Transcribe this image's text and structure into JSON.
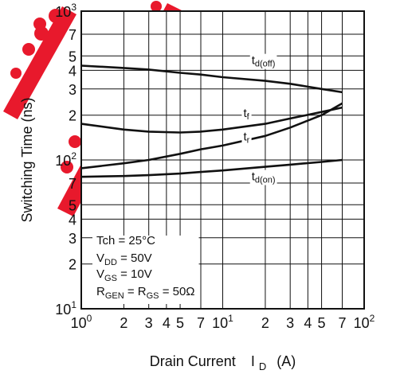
{
  "chart_data": {
    "type": "line",
    "x_scale": "log",
    "y_scale": "log",
    "xlim": [
      1,
      100
    ],
    "ylim": [
      10,
      1000
    ],
    "grid": true,
    "xlabel": "Drain Current",
    "xlabel_symbol": "I",
    "xlabel_sub": "D",
    "xlabel_unit": "(A)",
    "ylabel": "Switching Time  (ns)",
    "x_ticks": [
      {
        "v": 1,
        "base": "10",
        "sup": "0"
      },
      {
        "v": 2,
        "base": "2",
        "sup": ""
      },
      {
        "v": 3,
        "base": "3",
        "sup": ""
      },
      {
        "v": 4,
        "base": "4",
        "sup": ""
      },
      {
        "v": 5,
        "base": "5",
        "sup": ""
      },
      {
        "v": 7,
        "base": "7",
        "sup": ""
      },
      {
        "v": 10,
        "base": "10",
        "sup": "1"
      },
      {
        "v": 20,
        "base": "2",
        "sup": ""
      },
      {
        "v": 30,
        "base": "3",
        "sup": ""
      },
      {
        "v": 40,
        "base": "4",
        "sup": ""
      },
      {
        "v": 50,
        "base": "5",
        "sup": ""
      },
      {
        "v": 70,
        "base": "7",
        "sup": ""
      },
      {
        "v": 100,
        "base": "10",
        "sup": "2"
      }
    ],
    "y_ticks": [
      {
        "v": 10,
        "base": "10",
        "sup": "1"
      },
      {
        "v": 20,
        "base": "2",
        "sup": ""
      },
      {
        "v": 30,
        "base": "3",
        "sup": ""
      },
      {
        "v": 40,
        "base": "4",
        "sup": ""
      },
      {
        "v": 50,
        "base": "5",
        "sup": ""
      },
      {
        "v": 70,
        "base": "7",
        "sup": ""
      },
      {
        "v": 100,
        "base": "10",
        "sup": "2"
      },
      {
        "v": 200,
        "base": "2",
        "sup": ""
      },
      {
        "v": 300,
        "base": "3",
        "sup": ""
      },
      {
        "v": 400,
        "base": "4",
        "sup": ""
      },
      {
        "v": 500,
        "base": "5",
        "sup": ""
      },
      {
        "v": 700,
        "base": "7",
        "sup": ""
      },
      {
        "v": 1000,
        "base": "10",
        "sup": "3"
      }
    ],
    "series": [
      {
        "name": "td(off)",
        "label_main": "t",
        "label_sub": "d(off)",
        "label_x": 16,
        "label_y": 440,
        "x": [
          1,
          2,
          3,
          5,
          7,
          10,
          20,
          30,
          50,
          70
        ],
        "y": [
          430,
          415,
          405,
          385,
          375,
          360,
          340,
          325,
          300,
          285
        ]
      },
      {
        "name": "tf",
        "label_main": "t",
        "label_sub": "f",
        "label_x": 14,
        "label_y": 195,
        "x": [
          1,
          2,
          3,
          5,
          7,
          10,
          20,
          30,
          50,
          70
        ],
        "y": [
          175,
          160,
          155,
          153,
          155,
          160,
          175,
          190,
          210,
          225
        ]
      },
      {
        "name": "tr",
        "label_main": "t",
        "label_sub": "r",
        "label_x": 14,
        "label_y": 135,
        "x": [
          1,
          2,
          3,
          5,
          7,
          10,
          20,
          30,
          50,
          70
        ],
        "y": [
          88,
          95,
          100,
          110,
          118,
          125,
          145,
          165,
          200,
          240
        ]
      },
      {
        "name": "td(on)",
        "label_main": "t",
        "label_sub": "d(on)",
        "label_x": 16,
        "label_y": 73,
        "x": [
          1,
          2,
          3,
          5,
          7,
          10,
          20,
          30,
          50,
          70
        ],
        "y": [
          77,
          78,
          79,
          81,
          83,
          85,
          90,
          93,
          97,
          100
        ]
      }
    ],
    "conditions": [
      {
        "main": "Tch = 25°C",
        "sub": "",
        "rest": ""
      },
      {
        "main": "V",
        "sub": "DD",
        "rest": " = 50V"
      },
      {
        "main": "V",
        "sub": "GS",
        "rest": " = 10V"
      },
      {
        "main": "R",
        "sub": "GEN",
        "rest": " = R",
        "sub2": "GS",
        "rest2": " = 50Ω"
      }
    ]
  }
}
